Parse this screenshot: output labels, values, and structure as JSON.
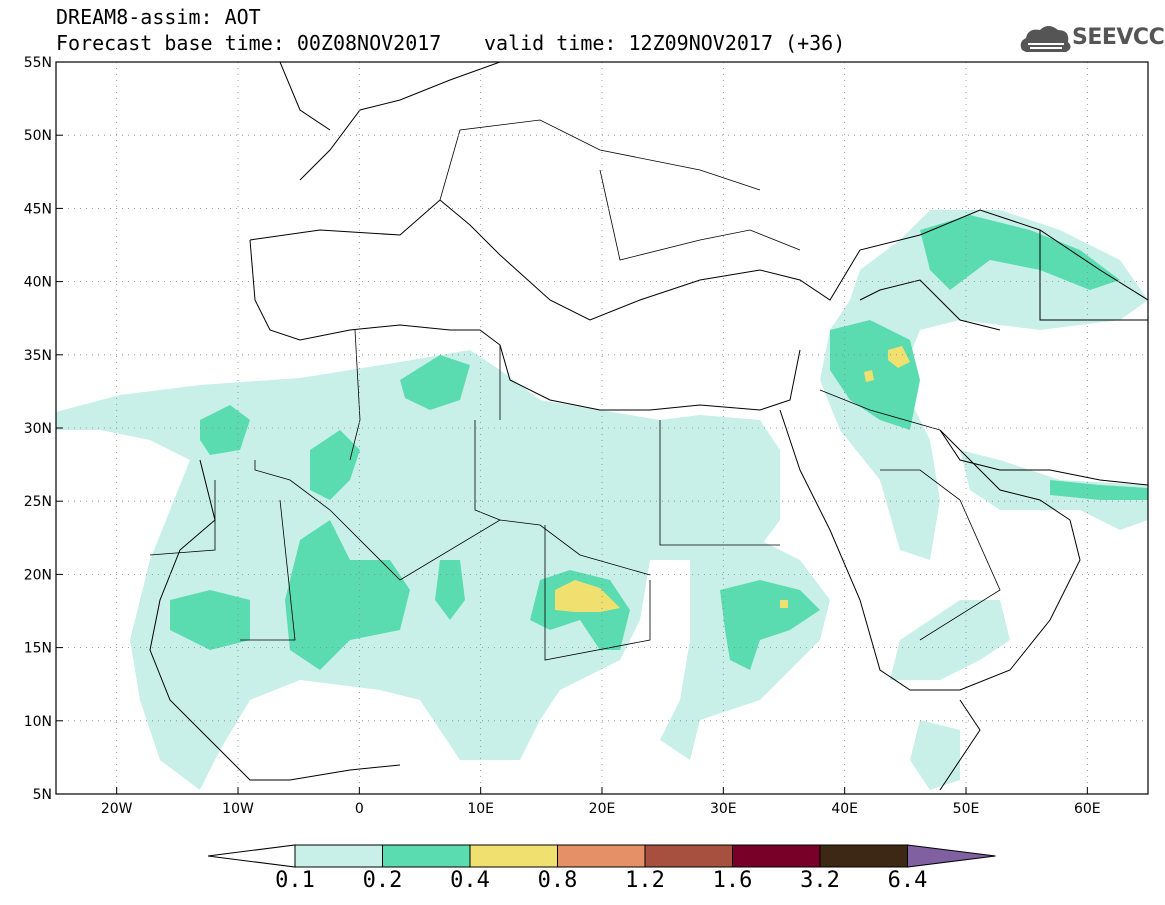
{
  "header": {
    "title": "DREAM8-assim: AOT",
    "base_time": "Forecast base time: 00Z08NOV2017",
    "valid_time": "valid time: 12Z09NOV2017 (+36)"
  },
  "logo": {
    "text": "SEEVCCC",
    "icon": "cloud-logo-icon"
  },
  "map": {
    "lat_labels": [
      "55N",
      "50N",
      "45N",
      "40N",
      "35N",
      "30N",
      "25N",
      "20N",
      "15N",
      "10N",
      "5N"
    ],
    "lon_labels": [
      "20W",
      "10W",
      "0",
      "10E",
      "20E",
      "30E",
      "40E",
      "50E",
      "60E"
    ]
  },
  "colorbar": {
    "labels": [
      "0.1",
      "0.2",
      "0.4",
      "0.8",
      "1.2",
      "1.6",
      "3.2",
      "6.4"
    ],
    "colors": [
      "#ffffff",
      "#c8f0e8",
      "#5bdcb0",
      "#f0e070",
      "#e69068",
      "#a85040",
      "#780028",
      "#3c2814",
      "#8060a0"
    ]
  },
  "fields": {
    "light_color": "#c8f0e8",
    "medium_color": "#5bdcb0",
    "high_color": "#f0e070"
  }
}
